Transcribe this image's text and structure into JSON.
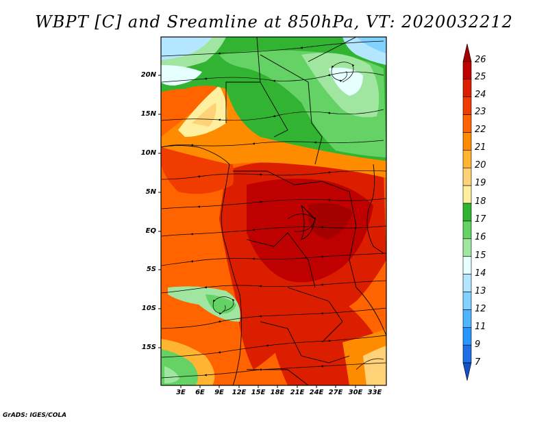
{
  "title": "WBPT [C] and Sreamline at 850hPa, VT: 2020032212",
  "footer": "GrADS: IGES/COLA",
  "lat_ticks": [
    "20N",
    "15N",
    "10N",
    "5N",
    "EQ",
    "5S",
    "10S",
    "15S"
  ],
  "lon_ticks": [
    "3E",
    "6E",
    "9E",
    "12E",
    "15E",
    "18E",
    "21E",
    "24E",
    "27E",
    "30E",
    "33E"
  ],
  "colorbar": {
    "labels": [
      "26",
      "25",
      "24",
      "23",
      "22",
      "21",
      "20",
      "19",
      "18",
      "17",
      "16",
      "15",
      "14",
      "13",
      "12",
      "11",
      "9",
      "7"
    ],
    "colors": [
      "#a50000",
      "#be0000",
      "#dc1e00",
      "#f03c00",
      "#ff6400",
      "#ff8c00",
      "#ffb432",
      "#ffd278",
      "#fff0a0",
      "#32b432",
      "#64d264",
      "#a0e6a0",
      "#e6ffff",
      "#b4e6ff",
      "#82d2ff",
      "#50b4ff",
      "#2896ff",
      "#1e6ee6",
      "#1450c8"
    ]
  }
}
